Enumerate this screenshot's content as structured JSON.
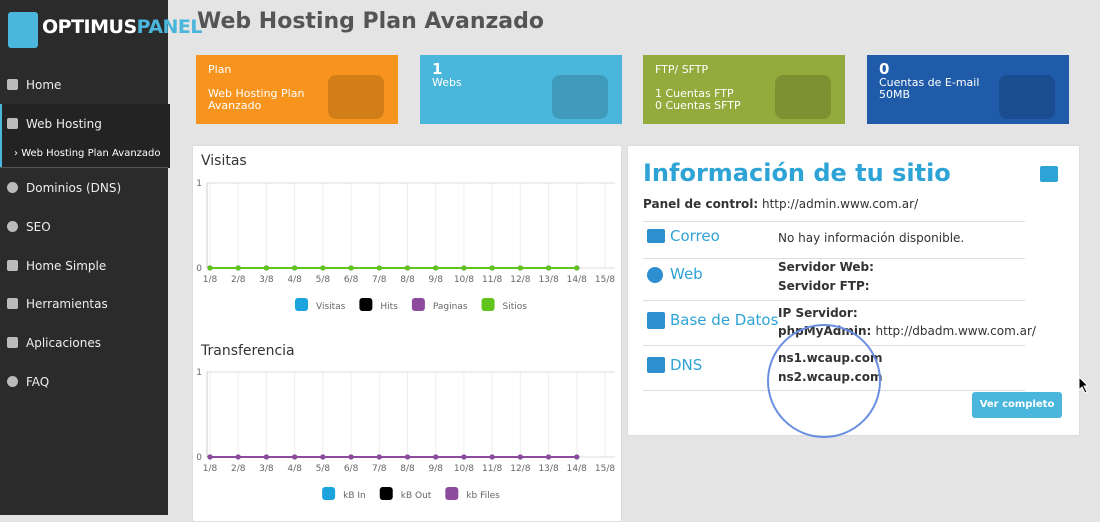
{
  "sidebar": {
    "logo": {
      "part1": "OPTIMUS",
      "part2": "PANEL"
    },
    "menu": [
      "Home",
      "Web Hosting",
      "Dominios (DNS)",
      "SEO",
      "Home Simple",
      "Herramientas",
      "Aplicaciones",
      "FAQ"
    ],
    "submenu": "Web Hosting Plan Avanzado"
  },
  "header": {
    "title": "Web Hosting Plan Avanzado"
  },
  "cards": [
    {
      "title": "Plan",
      "lines": [
        "Web Hosting Plan",
        "Avanzado"
      ],
      "color": "#f7941d"
    },
    {
      "title": 1,
      "lines": [
        "Webs"
      ],
      "color": "#4ab6dc"
    },
    {
      "title": "FTP/ SFTP",
      "lines": [
        "1 Cuentas FTP",
        "0 Cuentas SFTP"
      ],
      "color": "#93ab3c"
    },
    {
      "title": 0,
      "lines": [
        "Cuentas de E-mail",
        "50MB"
      ],
      "color": "#1f5ba8"
    }
  ],
  "charts": [
    {
      "type": "line",
      "title": "Visitas",
      "categories": [
        "1/8",
        "2/8",
        "3/8",
        "4/8",
        "5/8",
        "6/8",
        "7/8",
        "8/8",
        "9/8",
        "10/8",
        "11/8",
        "12/8",
        "13/8",
        "14/8",
        "15/8"
      ],
      "ylim": [
        0,
        1
      ],
      "yticks": [
        0,
        1
      ],
      "grid": true,
      "series": [
        {
          "name": "Visitas",
          "color": "#1aa3dc",
          "values": [
            0,
            0,
            0,
            0,
            0,
            0,
            0,
            0,
            0,
            0,
            0,
            0,
            0,
            0,
            null
          ]
        },
        {
          "name": "Hits",
          "color": "#000000",
          "values": [
            0,
            0,
            0,
            0,
            0,
            0,
            0,
            0,
            0,
            0,
            0,
            0,
            0,
            0,
            null
          ]
        },
        {
          "name": "Paginas",
          "color": "#8e4a9c",
          "values": [
            0,
            0,
            0,
            0,
            0,
            0,
            0,
            0,
            0,
            0,
            0,
            0,
            0,
            0,
            null
          ]
        },
        {
          "name": "Sitios",
          "color": "#5fc41c",
          "values": [
            0,
            0,
            0,
            0,
            0,
            0,
            0,
            0,
            0,
            0,
            0,
            0,
            0,
            0,
            null
          ]
        }
      ]
    },
    {
      "type": "line",
      "title": "Transferencia",
      "categories": [
        "1/8",
        "2/8",
        "3/8",
        "4/8",
        "5/8",
        "6/8",
        "7/8",
        "8/8",
        "9/8",
        "10/8",
        "11/8",
        "12/8",
        "13/8",
        "14/8",
        "15/8"
      ],
      "ylim": [
        0,
        1
      ],
      "yticks": [
        0,
        1
      ],
      "grid": true,
      "series": [
        {
          "name": "kB In",
          "color": "#1aa3dc",
          "values": [
            0,
            0,
            0,
            0,
            0,
            0,
            0,
            0,
            0,
            0,
            0,
            0,
            0,
            0,
            null
          ]
        },
        {
          "name": "kB Out",
          "color": "#000000",
          "values": [
            0,
            0,
            0,
            0,
            0,
            0,
            0,
            0,
            0,
            0,
            0,
            0,
            0,
            0,
            null
          ]
        },
        {
          "name": "kb Files",
          "color": "#8e4a9c",
          "values": [
            0,
            0,
            0,
            0,
            0,
            0,
            0,
            0,
            0,
            0,
            0,
            0,
            0,
            0,
            null
          ]
        }
      ]
    }
  ],
  "info": {
    "title": "Información de tu sitio",
    "panel_label": "Panel de control:",
    "panel_url": "http://admin.www.com.ar/",
    "rows": [
      {
        "label": "Correo",
        "lines": [
          "No hay información disponible."
        ]
      },
      {
        "label": "Web",
        "lines": [
          "Servidor Web:",
          "Servidor FTP:"
        ]
      },
      {
        "label": "Base de Datos",
        "lines": [
          "IP Servidor:",
          "phpMyAdmin:"
        ],
        "url": "http://dbadm.www.com.ar/"
      },
      {
        "label": "DNS",
        "lines": [
          "ns1.wcaup.com",
          "ns2.wcaup.com"
        ]
      }
    ],
    "button": "Ver completo"
  }
}
